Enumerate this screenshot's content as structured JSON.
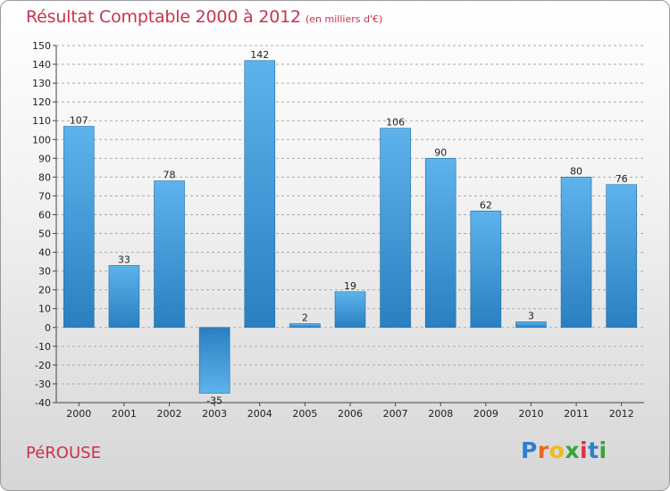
{
  "header": {
    "title": "Résultat Comptable 2000 à 2012",
    "subtitle": "(en milliers d'€)"
  },
  "footer": {
    "city": "PéROUSE",
    "logo": {
      "letters": [
        "P",
        "r",
        "o",
        "x",
        "i",
        "t",
        "i"
      ],
      "colors": [
        "#2f7fd0",
        "#e8681c",
        "#f2b91a",
        "#3aa33a",
        "#d8344a",
        "#2f7fd0",
        "#3aa33a"
      ]
    }
  },
  "colors": {
    "bar_top": "#5eb3ec",
    "bar_bottom": "#2a7fc0",
    "bar_edge": "#1f6ea8",
    "grid": "#aaaaaa",
    "axis": "#444444"
  },
  "chart_data": {
    "type": "bar",
    "title": "Résultat Comptable 2000 à 2012",
    "subtitle": "(en milliers d'€)",
    "xlabel": "",
    "ylabel": "",
    "ylim": [
      -40,
      150
    ],
    "ytick_step": 10,
    "grid": true,
    "categories": [
      "2000",
      "2001",
      "2002",
      "2003",
      "2004",
      "2005",
      "2006",
      "2007",
      "2008",
      "2009",
      "2010",
      "2011",
      "2012"
    ],
    "values": [
      107,
      33,
      78,
      -35,
      142,
      2,
      19,
      106,
      90,
      62,
      3,
      80,
      76
    ],
    "value_labels": [
      "107",
      "33",
      "78",
      "-35",
      "142",
      "2",
      "19",
      "106",
      "90",
      "62",
      "3",
      "80",
      "76"
    ]
  }
}
